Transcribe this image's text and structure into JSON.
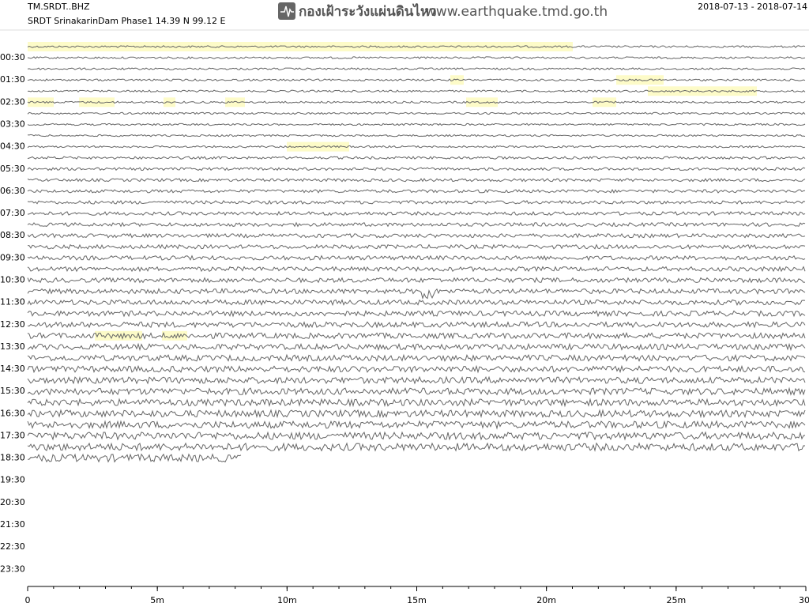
{
  "chart_data": {
    "type": "helicorder",
    "station": "TM.SRDT..BHZ",
    "subtitle": "SRDT SrinakarinDam Phase1  14.39 N 99.12 E",
    "logo_text": "กองเฝ้าระวังแผ่นดินไหว",
    "website": "www.earthquake.tmd.go.th",
    "date_range": "2018-07-13 - 2018-07-14",
    "row_labels": [
      "00:30",
      "01:30",
      "02:30",
      "03:30",
      "04:30",
      "05:30",
      "06:30",
      "07:30",
      "08:30",
      "09:30",
      "10:30",
      "11:30",
      "12:30",
      "13:30",
      "14:30",
      "15:30",
      "16:30",
      "17:30",
      "18:30",
      "19:30",
      "20:30",
      "21:30",
      "22:30",
      "23:30"
    ],
    "xlim": [
      0,
      30
    ],
    "xticks": [
      0,
      {
        "value": 5,
        "label": "5m"
      },
      {
        "value": 10,
        "label": "10m"
      },
      {
        "value": 15,
        "label": "15m"
      },
      {
        "value": 20,
        "label": "20m"
      },
      {
        "value": 25,
        "label": "25m"
      },
      {
        "value": 30,
        "label": "30"
      }
    ]
  }
}
